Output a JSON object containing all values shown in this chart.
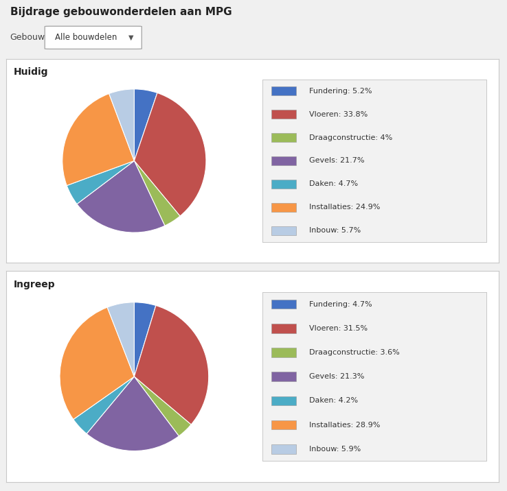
{
  "title": "Bijdrage gebouwonderdelen aan MPG",
  "gebouw_label": "Gebouw",
  "gebouw_value": "Alle bouwdelen",
  "section1_title": "Huidig",
  "section2_title": "Ingreep",
  "colors": [
    "#4472c4",
    "#c0504d",
    "#9bbb59",
    "#8064a2",
    "#4bacc6",
    "#f79646",
    "#b8cce4"
  ],
  "labels": [
    "Fundering",
    "Vloeren",
    "Draagconstructie",
    "Gevels",
    "Daken",
    "Installaties",
    "Inbouw"
  ],
  "huidig_values": [
    5.2,
    33.8,
    4.0,
    21.7,
    4.7,
    24.9,
    5.7
  ],
  "ingreep_values": [
    4.7,
    31.5,
    3.6,
    21.3,
    4.2,
    28.9,
    5.9
  ],
  "huidig_labels": [
    "Fundering: 5.2%",
    "Vloeren: 33.8%",
    "Draagconstructie: 4%",
    "Gevels: 21.7%",
    "Daken: 4.7%",
    "Installaties: 24.9%",
    "Inbouw: 5.7%"
  ],
  "ingreep_labels": [
    "Fundering: 4.7%",
    "Vloeren: 31.5%",
    "Draagconstructie: 3.6%",
    "Gevels: 21.3%",
    "Daken: 4.2%",
    "Installaties: 28.9%",
    "Inbouw: 5.9%"
  ],
  "bg_color": "#f0f0f0",
  "panel_color": "#ffffff",
  "border_color": "#c8c8c8",
  "legend_bg": "#f2f2f2"
}
